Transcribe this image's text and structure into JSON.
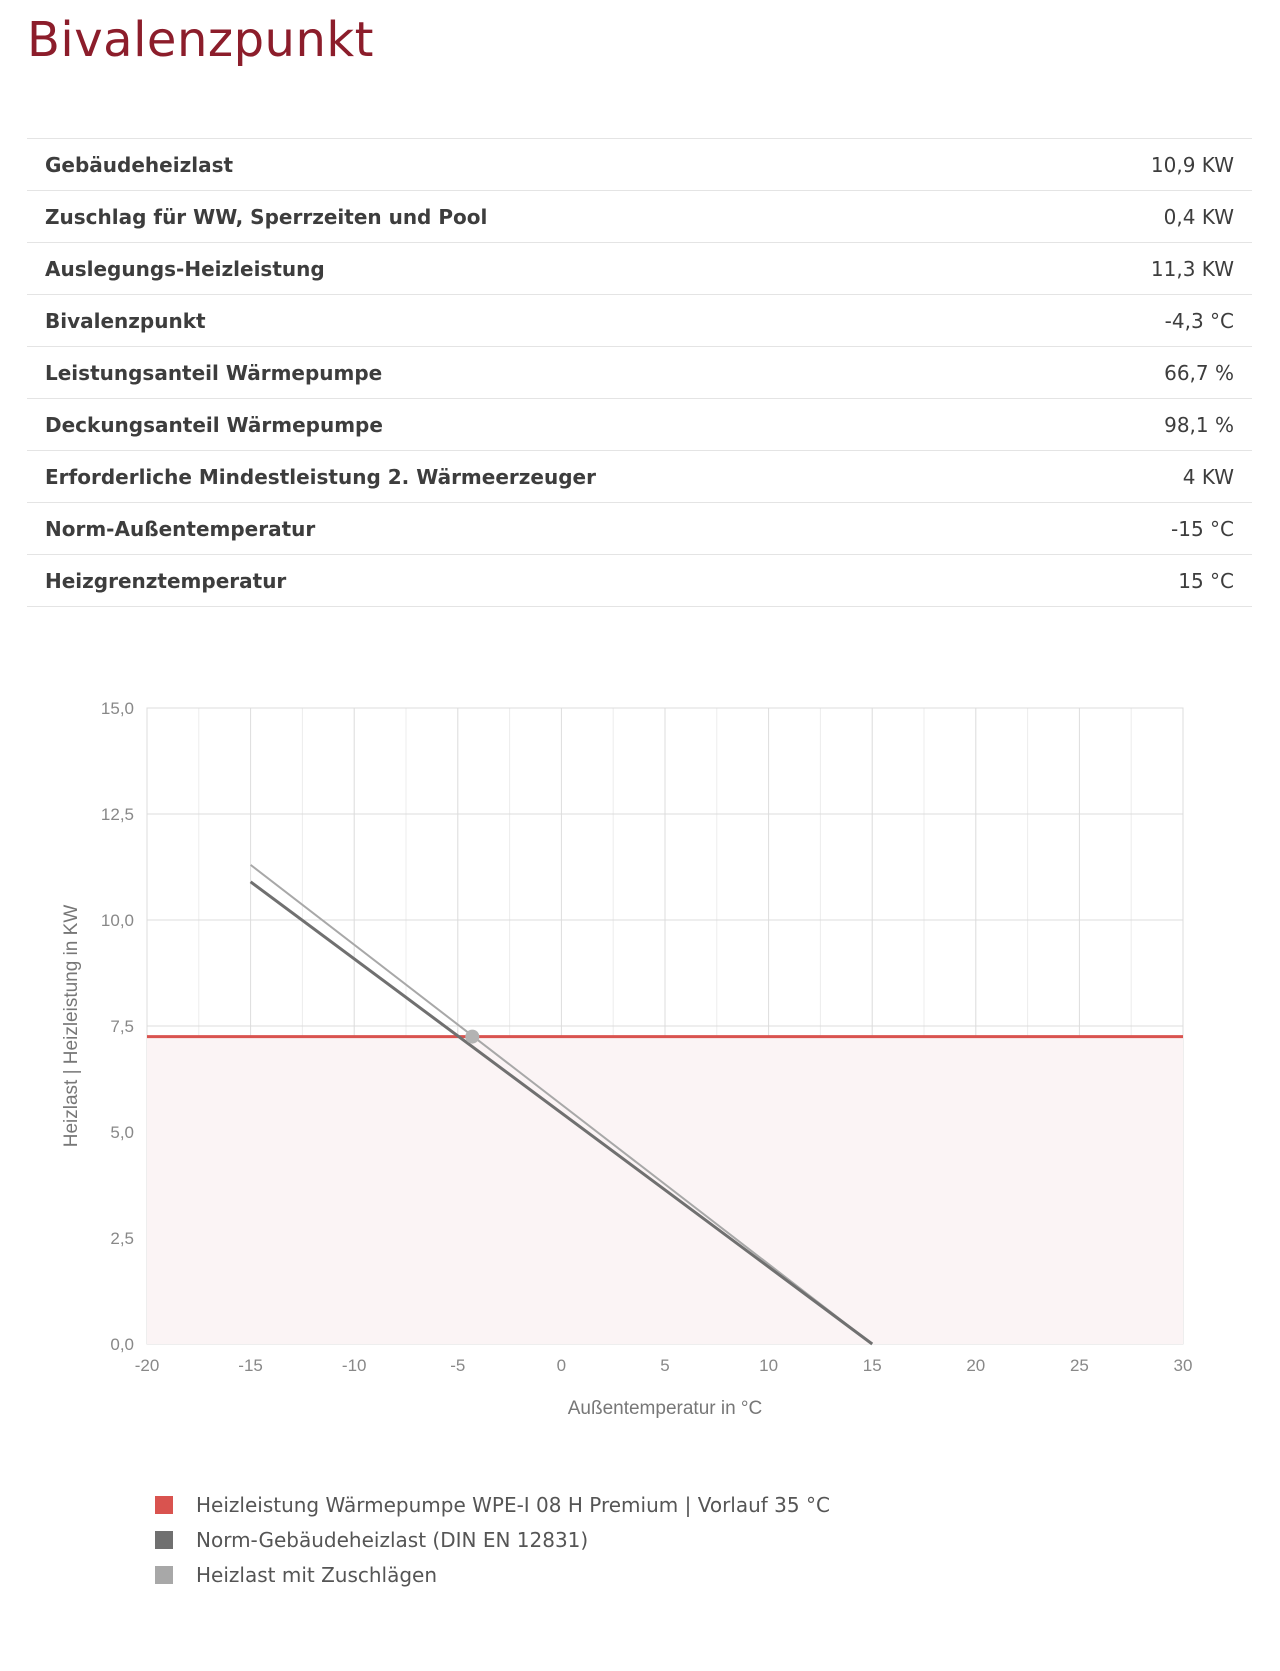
{
  "page": {
    "title": "Bivalenzpunkt"
  },
  "table": {
    "rows": [
      {
        "label": "Gebäudeheizlast",
        "value": "10,9 KW"
      },
      {
        "label": "Zuschlag für WW, Sperrzeiten und Pool",
        "value": "0,4 KW"
      },
      {
        "label": "Auslegungs-Heizleistung",
        "value": "11,3 KW"
      },
      {
        "label": "Bivalenzpunkt",
        "value": "-4,3 °C"
      },
      {
        "label": "Leistungsanteil Wärmepumpe",
        "value": "66,7 %"
      },
      {
        "label": "Deckungsanteil Wärmepumpe",
        "value": "98,1 %"
      },
      {
        "label": "Erforderliche Mindestleistung 2. Wärmeerzeuger",
        "value": "4 KW"
      },
      {
        "label": "Norm-Außentemperatur",
        "value": "-15 °C"
      },
      {
        "label": "Heizgrenztemperatur",
        "value": "15 °C"
      }
    ]
  },
  "chart_data": {
    "type": "line",
    "xlabel": "Außentemperatur in °C",
    "ylabel": "Heizlast | Heizleistung in KW",
    "xlim": [
      -20,
      30
    ],
    "ylim": [
      0,
      15
    ],
    "x_ticks": [
      -20,
      -15,
      -10,
      -5,
      0,
      5,
      10,
      15,
      20,
      25,
      30
    ],
    "x_tick_labels": [
      "-20",
      "-15",
      "-10",
      "-5",
      "0",
      "5",
      "10",
      "15",
      "20",
      "25",
      "30"
    ],
    "y_ticks": [
      0,
      2.5,
      5,
      7.5,
      10,
      12.5,
      15
    ],
    "y_tick_labels": [
      "0,0",
      "2,5",
      "5,0",
      "7,5",
      "10,0",
      "12,5",
      "15,0"
    ],
    "grid": true,
    "legend_position": "bottom-left",
    "series": [
      {
        "name": "Heizleistung Wärmepumpe WPE-I 08 H Premium | Vorlauf 35 °C",
        "color": "#d9534f",
        "fill": "#fbf4f5",
        "x": [
          -20,
          30
        ],
        "y": [
          7.25,
          7.25
        ]
      },
      {
        "name": "Norm-Gebäudeheizlast (DIN EN 12831)",
        "color": "#707070",
        "x": [
          -15,
          15
        ],
        "y": [
          10.9,
          0
        ]
      },
      {
        "name": "Heizlast mit Zuschlägen",
        "color": "#a8a8a8",
        "x": [
          -15,
          15
        ],
        "y": [
          11.3,
          0
        ]
      }
    ],
    "marker": {
      "x": -4.3,
      "y": 7.25,
      "color": "#b3b3b3"
    }
  }
}
